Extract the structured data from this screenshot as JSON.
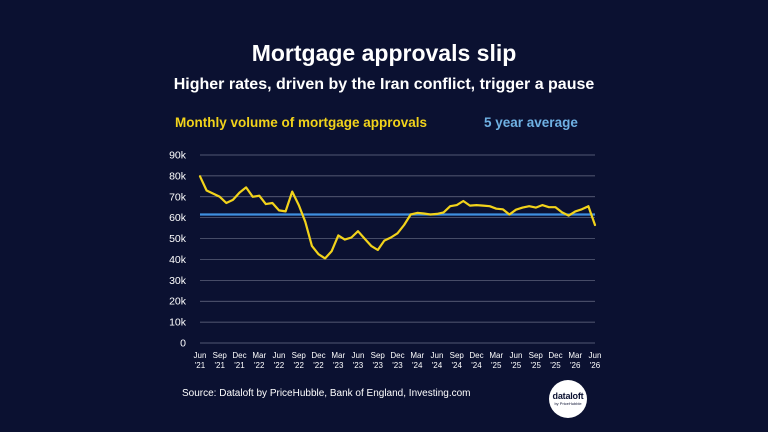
{
  "header": {
    "title": "Mortgage approvals slip",
    "subtitle": "Higher rates, driven by the Iran conflict, trigger a pause"
  },
  "legend": {
    "primary": "Monthly volume of mortgage approvals",
    "average": "5 year average"
  },
  "source": "Source: Dataloft by PriceHubble, Bank of England, Investing.com",
  "logo": {
    "main": "dataloft",
    "sub": "by PriceHubble"
  },
  "colors": {
    "background": "#0b1131",
    "line": "#f2d31b",
    "average": "#3f8fe0",
    "grid": "#6b7088",
    "text": "#ffffff"
  },
  "chart_data": {
    "type": "line",
    "title": "",
    "xlabel": "",
    "ylabel": "",
    "ylim": [
      0,
      90000
    ],
    "grid": true,
    "yticks": [
      "0",
      "10k",
      "20k",
      "30k",
      "40k",
      "50k",
      "60k",
      "70k",
      "80k",
      "90k"
    ],
    "xtick_labels": [
      [
        "Jun",
        "'21"
      ],
      [
        "Sep",
        "'21"
      ],
      [
        "Dec",
        "'21"
      ],
      [
        "Mar",
        "'22"
      ],
      [
        "Jun",
        "'22"
      ],
      [
        "Sep",
        "'22"
      ],
      [
        "Dec",
        "'22"
      ],
      [
        "Mar",
        "'23"
      ],
      [
        "Jun",
        "'23"
      ],
      [
        "Sep",
        "'23"
      ],
      [
        "Dec",
        "'23"
      ],
      [
        "Mar",
        "'24"
      ],
      [
        "Jun",
        "'24"
      ],
      [
        "Sep",
        "'24"
      ],
      [
        "Dec",
        "'24"
      ],
      [
        "Mar",
        "'25"
      ],
      [
        "Jun",
        "'25"
      ],
      [
        "Sep",
        "'25"
      ],
      [
        "Dec",
        "'25"
      ],
      [
        "Mar",
        "'26"
      ],
      [
        "Jun",
        "'26"
      ]
    ],
    "x_start": "2021-06",
    "series": [
      {
        "name": "Monthly volume of mortgage approvals",
        "values": [
          79800,
          73000,
          71500,
          70000,
          67000,
          68500,
          72000,
          74500,
          70000,
          70500,
          66500,
          67000,
          63500,
          63000,
          72500,
          66000,
          58000,
          46500,
          42500,
          40500,
          44000,
          51500,
          49500,
          50500,
          53500,
          50000,
          46500,
          44500,
          49000,
          50500,
          52500,
          56500,
          61500,
          62300,
          62000,
          61500,
          61800,
          62500,
          65500,
          66000,
          68000,
          65800,
          66000,
          65800,
          65500,
          64300,
          64000,
          61500,
          63800,
          64800,
          65500,
          64800,
          66000,
          65000,
          65000,
          62500,
          61000,
          63000,
          64000,
          65500,
          56500
        ]
      },
      {
        "name": "5 year average",
        "values": [
          61500
        ],
        "constant": true
      }
    ]
  }
}
